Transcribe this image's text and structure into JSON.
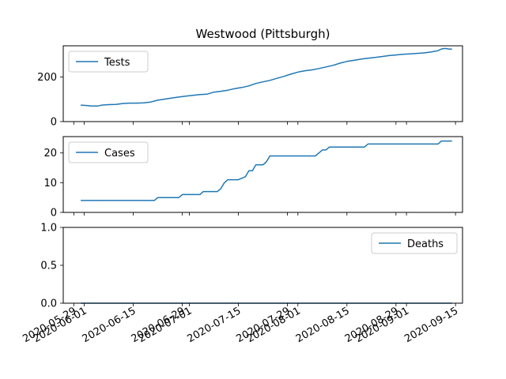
{
  "chart_data": {
    "title": "Westwood (Pittsburgh)",
    "type": "line",
    "shared_x_axis": {
      "type": "date",
      "range": [
        "2020-05-26",
        "2020-09-17"
      ],
      "ticks": [
        {
          "label": "2020-05-29",
          "date": "2020-05-29"
        },
        {
          "label": "2020-06-01",
          "date": "2020-06-01"
        },
        {
          "label": "2020-06-15",
          "date": "2020-06-15"
        },
        {
          "label": "2020-06-29",
          "date": "2020-06-29"
        },
        {
          "label": "2020-07-01",
          "date": "2020-07-01"
        },
        {
          "label": "2020-07-15",
          "date": "2020-07-15"
        },
        {
          "label": "2020-07-29",
          "date": "2020-07-29"
        },
        {
          "label": "2020-08-01",
          "date": "2020-08-01"
        },
        {
          "label": "2020-08-15",
          "date": "2020-08-15"
        },
        {
          "label": "2020-08-29",
          "date": "2020-08-29"
        },
        {
          "label": "2020-09-01",
          "date": "2020-09-01"
        },
        {
          "label": "2020-09-15",
          "date": "2020-09-15"
        }
      ]
    },
    "panels": [
      {
        "series_name": "Tests",
        "color": "#1f77b4",
        "legend_loc": "upper left",
        "ylim": [
          0,
          340
        ],
        "yticks": [
          {
            "label": "0",
            "value": 0
          },
          {
            "label": "200",
            "value": 200
          }
        ],
        "points": [
          [
            "2020-05-31",
            74
          ],
          [
            "2020-06-02",
            72
          ],
          [
            "2020-06-03",
            70
          ],
          [
            "2020-06-05",
            70
          ],
          [
            "2020-06-06",
            74
          ],
          [
            "2020-06-08",
            76
          ],
          [
            "2020-06-10",
            77
          ],
          [
            "2020-06-12",
            81
          ],
          [
            "2020-06-14",
            83
          ],
          [
            "2020-06-16",
            83
          ],
          [
            "2020-06-18",
            84
          ],
          [
            "2020-06-20",
            88
          ],
          [
            "2020-06-22",
            96
          ],
          [
            "2020-06-24",
            101
          ],
          [
            "2020-06-26",
            106
          ],
          [
            "2020-06-28",
            110
          ],
          [
            "2020-06-30",
            114
          ],
          [
            "2020-07-02",
            118
          ],
          [
            "2020-07-04",
            121
          ],
          [
            "2020-07-06",
            123
          ],
          [
            "2020-07-08",
            132
          ],
          [
            "2020-07-10",
            136
          ],
          [
            "2020-07-12",
            141
          ],
          [
            "2020-07-14",
            148
          ],
          [
            "2020-07-16",
            153
          ],
          [
            "2020-07-18",
            160
          ],
          [
            "2020-07-20",
            171
          ],
          [
            "2020-07-22",
            178
          ],
          [
            "2020-07-24",
            185
          ],
          [
            "2020-07-26",
            194
          ],
          [
            "2020-07-28",
            203
          ],
          [
            "2020-07-30",
            213
          ],
          [
            "2020-08-01",
            222
          ],
          [
            "2020-08-03",
            228
          ],
          [
            "2020-08-05",
            232
          ],
          [
            "2020-08-07",
            238
          ],
          [
            "2020-08-09",
            245
          ],
          [
            "2020-08-11",
            252
          ],
          [
            "2020-08-13",
            262
          ],
          [
            "2020-08-15",
            270
          ],
          [
            "2020-08-17",
            275
          ],
          [
            "2020-08-19",
            280
          ],
          [
            "2020-08-21",
            284
          ],
          [
            "2020-08-23",
            288
          ],
          [
            "2020-08-25",
            292
          ],
          [
            "2020-08-27",
            296
          ],
          [
            "2020-08-29",
            299
          ],
          [
            "2020-08-31",
            302
          ],
          [
            "2020-09-02",
            304
          ],
          [
            "2020-09-04",
            306
          ],
          [
            "2020-09-06",
            308
          ],
          [
            "2020-09-08",
            312
          ],
          [
            "2020-09-10",
            318
          ],
          [
            "2020-09-11",
            326
          ],
          [
            "2020-09-12",
            328
          ],
          [
            "2020-09-13",
            326
          ],
          [
            "2020-09-14",
            325
          ]
        ]
      },
      {
        "series_name": "Cases",
        "color": "#1f77b4",
        "legend_loc": "upper left",
        "ylim": [
          0,
          25.5
        ],
        "yticks": [
          {
            "label": "0",
            "value": 0
          },
          {
            "label": "10",
            "value": 10
          },
          {
            "label": "20",
            "value": 20
          }
        ],
        "points": [
          [
            "2020-05-31",
            4
          ],
          [
            "2020-06-05",
            4
          ],
          [
            "2020-06-10",
            4
          ],
          [
            "2020-06-15",
            4
          ],
          [
            "2020-06-20",
            4
          ],
          [
            "2020-06-21",
            4
          ],
          [
            "2020-06-22",
            5
          ],
          [
            "2020-06-28",
            5
          ],
          [
            "2020-06-29",
            6
          ],
          [
            "2020-07-04",
            6
          ],
          [
            "2020-07-05",
            7
          ],
          [
            "2020-07-09",
            7
          ],
          [
            "2020-07-10",
            8
          ],
          [
            "2020-07-11",
            10
          ],
          [
            "2020-07-12",
            11
          ],
          [
            "2020-07-15",
            11
          ],
          [
            "2020-07-17",
            12
          ],
          [
            "2020-07-18",
            14
          ],
          [
            "2020-07-19",
            14
          ],
          [
            "2020-07-20",
            16
          ],
          [
            "2020-07-22",
            16
          ],
          [
            "2020-07-23",
            17
          ],
          [
            "2020-07-24",
            19
          ],
          [
            "2020-07-31",
            19
          ],
          [
            "2020-08-04",
            19
          ],
          [
            "2020-08-06",
            19
          ],
          [
            "2020-08-07",
            20
          ],
          [
            "2020-08-08",
            21
          ],
          [
            "2020-08-09",
            21
          ],
          [
            "2020-08-10",
            22
          ],
          [
            "2020-08-20",
            22
          ],
          [
            "2020-08-21",
            23
          ],
          [
            "2020-08-30",
            23
          ],
          [
            "2020-09-10",
            23
          ],
          [
            "2020-09-11",
            24
          ],
          [
            "2020-09-14",
            24
          ]
        ]
      },
      {
        "series_name": "Deaths",
        "color": "#1f77b4",
        "legend_loc": "upper right",
        "ylim": [
          0,
          1
        ],
        "yticks": [
          {
            "label": "0.0",
            "value": 0
          },
          {
            "label": "0.5",
            "value": 0.5
          },
          {
            "label": "1.0",
            "value": 1
          }
        ],
        "points": [
          [
            "2020-05-31",
            0
          ],
          [
            "2020-09-14",
            0
          ]
        ]
      }
    ]
  }
}
